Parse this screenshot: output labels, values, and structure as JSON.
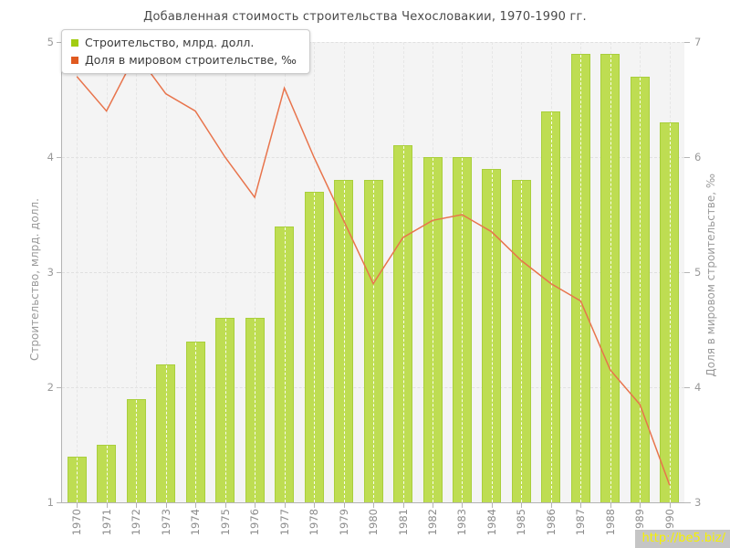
{
  "title": "Добавленная стоимость строительства Чехословакии, 1970-1990 гг.",
  "legend": {
    "items": [
      {
        "label": "Строительство, млрд. долл.",
        "color": "#a2cc11"
      },
      {
        "label": "Доля в мировом строительстве, ‰",
        "color": "#e05a20"
      }
    ]
  },
  "watermark": {
    "text": "http://be5.biz/",
    "background": "#c5c5c5",
    "color": "#f6f200"
  },
  "colors": {
    "bar_fill": "#bedd52",
    "bar_border": "#a9cf3c",
    "line": "#e8744c",
    "plot_background": "#f4f4f4",
    "grid": "#e0e0e0",
    "axis": "#b3b3b3",
    "tick_text": "#999999",
    "title_text": "#4a4a4a"
  },
  "chart_data": {
    "type": "bar",
    "title": "Добавленная стоимость строительства Чехословакии, 1970-1990 гг.",
    "categories": [
      "1970",
      "1971",
      "1972",
      "1973",
      "1974",
      "1975",
      "1976",
      "1977",
      "1978",
      "1979",
      "1980",
      "1981",
      "1982",
      "1983",
      "1984",
      "1985",
      "1986",
      "1987",
      "1988",
      "1989",
      "1990"
    ],
    "series": [
      {
        "name": "Строительство, млрд. долл.",
        "type": "bar",
        "axis": "left",
        "values": [
          1.4,
          1.5,
          1.9,
          2.2,
          2.4,
          2.6,
          2.6,
          3.4,
          3.7,
          3.8,
          3.8,
          4.1,
          4.0,
          4.0,
          3.9,
          3.8,
          4.4,
          4.9,
          4.9,
          4.7,
          4.3
        ]
      },
      {
        "name": "Доля в мировом строительстве, ‰",
        "type": "line",
        "axis": "right",
        "values": [
          6.7,
          6.4,
          6.9,
          6.55,
          6.4,
          6.0,
          5.65,
          6.6,
          6.0,
          5.45,
          4.9,
          5.3,
          5.45,
          5.5,
          5.35,
          5.1,
          4.9,
          4.75,
          4.15,
          3.85,
          3.15
        ]
      }
    ],
    "left_axis": {
      "label": "Строительство, млрд. долл.",
      "min": 1,
      "max": 5,
      "ticks": [
        1,
        2,
        3,
        4,
        5
      ]
    },
    "right_axis": {
      "label": "Доля в мировом строительстве, ‰",
      "min": 3,
      "max": 7,
      "ticks": [
        3,
        4,
        5,
        6,
        7
      ]
    },
    "grid": true,
    "legend_position": "top-left"
  }
}
